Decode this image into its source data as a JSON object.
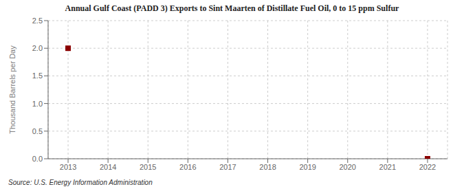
{
  "chart_data": {
    "type": "scatter",
    "title": "Annual Gulf Coast (PADD 3) Exports to Sint Maarten of Distillate Fuel Oil, 0 to 15 ppm Sulfur",
    "ylabel": "Thousand Barrels per Day",
    "annotations": [
      "Source: U.S. Energy Information Administration"
    ],
    "x": [
      2013,
      2022
    ],
    "values": [
      2.0,
      0.0
    ],
    "color": "#8B0000",
    "marker": "square",
    "xlim": [
      2012.5,
      2022.5
    ],
    "xticks": [
      2013,
      2014,
      2015,
      2016,
      2017,
      2018,
      2019,
      2020,
      2021,
      2022
    ],
    "ylim": [
      0.0,
      2.5
    ],
    "yticks": [
      {
        "value": 0.0,
        "label": "0.0"
      },
      0.5,
      {
        "value": 1.0,
        "label": "1.0"
      },
      1.5,
      {
        "value": 2.0,
        "label": "2.0"
      },
      2.5
    ],
    "grid": true
  }
}
